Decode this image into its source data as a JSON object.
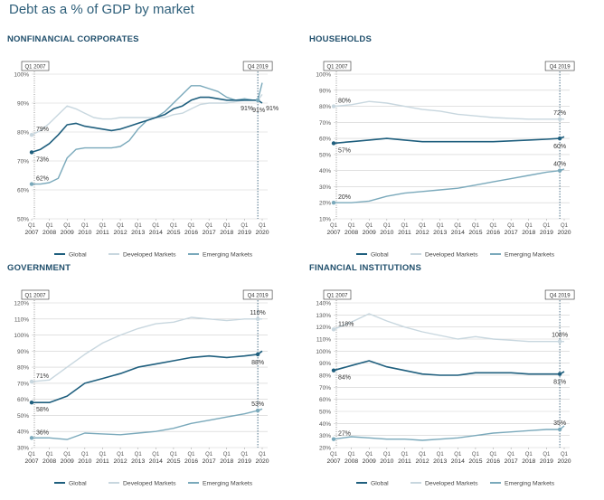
{
  "page_title": "Debt as a % of GDP by market",
  "colors": {
    "global": "#1f5f7e",
    "developed": "#c8d7df",
    "emerging": "#7aa9bb",
    "marker_label": "#1f4e6b"
  },
  "marker_start": "Q1 2007",
  "marker_end": "Q4 2019",
  "legend": {
    "global": "Global",
    "developed": "Developed Markets",
    "emerging": "Emerging Markets"
  },
  "x_ticks": [
    {
      "top": "Q1",
      "bottom": "2007"
    },
    {
      "top": "Q1",
      "bottom": "2008"
    },
    {
      "top": "Q1",
      "bottom": "2009"
    },
    {
      "top": "Q1",
      "bottom": "2010"
    },
    {
      "top": "Q1",
      "bottom": "2011"
    },
    {
      "top": "Q1",
      "bottom": "2012"
    },
    {
      "top": "Q1",
      "bottom": "2013"
    },
    {
      "top": "Q1",
      "bottom": "2014"
    },
    {
      "top": "Q1",
      "bottom": "2015"
    },
    {
      "top": "Q1",
      "bottom": "2016"
    },
    {
      "top": "Q1",
      "bottom": "2017"
    },
    {
      "top": "Q1",
      "bottom": "2018"
    },
    {
      "top": "Q1",
      "bottom": "2019"
    },
    {
      "top": "Q1",
      "bottom": "2020"
    }
  ],
  "chart_data": [
    {
      "type": "line",
      "title": "NONFINANCIAL CORPORATES",
      "x": [
        2007,
        2007.5,
        2008,
        2008.5,
        2009,
        2009.5,
        2010,
        2010.5,
        2011,
        2011.5,
        2012,
        2012.5,
        2013,
        2013.5,
        2014,
        2014.5,
        2015,
        2015.5,
        2016,
        2016.5,
        2017,
        2017.5,
        2018,
        2018.5,
        2019,
        2019.5,
        2019.75,
        2020
      ],
      "ylim": [
        50,
        100
      ],
      "yticks": [
        "50%",
        "60%",
        "70%",
        "80%",
        "90%",
        "100%"
      ],
      "series": [
        {
          "name": "Global",
          "values": [
            73,
            74,
            76,
            79,
            82.5,
            83,
            82,
            81.5,
            81,
            80.5,
            81,
            82,
            83,
            84,
            85,
            86,
            88,
            89,
            91,
            92,
            92,
            91.5,
            91,
            91,
            91,
            91,
            91,
            90
          ]
        },
        {
          "name": "Developed Markets",
          "values": [
            79,
            80.5,
            83,
            86,
            89,
            88,
            86.5,
            85,
            84.5,
            84.5,
            85,
            85,
            85,
            85,
            85,
            85,
            86,
            86.5,
            88,
            89.5,
            90,
            90,
            90,
            90.5,
            91,
            91,
            91,
            93
          ]
        },
        {
          "name": "Emerging Markets",
          "values": [
            62,
            62,
            62.5,
            64,
            71,
            74,
            74.5,
            74.5,
            74.5,
            74.5,
            75,
            77,
            81,
            84,
            85,
            87,
            90,
            93,
            96,
            96,
            95,
            94,
            92,
            91,
            91.5,
            91,
            91,
            97
          ]
        }
      ],
      "start_labels": [
        "79%",
        "73%",
        "62%"
      ],
      "end_labels": [
        "91%",
        "91%",
        "91%"
      ]
    },
    {
      "type": "line",
      "title": "HOUSEHOLDS",
      "x": [
        2007,
        2008,
        2009,
        2010,
        2011,
        2012,
        2013,
        2014,
        2015,
        2016,
        2017,
        2018,
        2019,
        2019.75,
        2020
      ],
      "ylim": [
        10,
        100
      ],
      "yticks": [
        "10%",
        "20%",
        "30%",
        "40%",
        "50%",
        "60%",
        "70%",
        "80%",
        "90%",
        "100%"
      ],
      "series": [
        {
          "name": "Global",
          "values": [
            57,
            58,
            59,
            60,
            59,
            58,
            58,
            58,
            58,
            58,
            58.5,
            59,
            59.5,
            60,
            61
          ]
        },
        {
          "name": "Developed Markets",
          "values": [
            80,
            81,
            83,
            82,
            80,
            78,
            77,
            75,
            74,
            73,
            72.5,
            72,
            72,
            72,
            72
          ]
        },
        {
          "name": "Emerging Markets",
          "values": [
            20,
            20,
            21,
            24,
            26,
            27,
            28,
            29,
            31,
            33,
            35,
            37,
            39,
            40,
            41
          ]
        }
      ],
      "start_labels": [
        "80%",
        "57%",
        "20%"
      ],
      "end_labels": [
        "72%",
        "60%",
        "40%"
      ]
    },
    {
      "type": "line",
      "title": "GOVERNMENT",
      "x": [
        2007,
        2008,
        2009,
        2010,
        2011,
        2012,
        2013,
        2014,
        2015,
        2016,
        2017,
        2018,
        2019,
        2019.75,
        2020
      ],
      "ylim": [
        30,
        120
      ],
      "yticks": [
        "30%",
        "40%",
        "50%",
        "60%",
        "70%",
        "80%",
        "90%",
        "100%",
        "110%",
        "120%"
      ],
      "series": [
        {
          "name": "Global",
          "values": [
            58,
            58,
            62,
            70,
            73,
            76,
            80,
            82,
            84,
            86,
            87,
            86,
            87,
            88,
            90
          ]
        },
        {
          "name": "Developed Markets",
          "values": [
            71,
            72,
            80,
            88,
            95,
            100,
            104,
            107,
            108,
            111,
            110,
            109,
            110,
            110,
            110
          ]
        },
        {
          "name": "Emerging Markets",
          "values": [
            36,
            36,
            35,
            39,
            38.5,
            38,
            39,
            40,
            42,
            45,
            47,
            49,
            51,
            53,
            54
          ]
        }
      ],
      "start_labels": [
        "71%",
        "58%",
        "36%"
      ],
      "end_labels": [
        "110%",
        "88%",
        "53%"
      ]
    },
    {
      "type": "line",
      "title": "FINANCIAL INSTITUTIONS",
      "x": [
        2007,
        2008,
        2009,
        2010,
        2011,
        2012,
        2013,
        2014,
        2015,
        2016,
        2017,
        2018,
        2019,
        2019.75,
        2020
      ],
      "ylim": [
        20,
        140
      ],
      "yticks": [
        "20%",
        "30%",
        "40%",
        "50%",
        "60%",
        "70%",
        "80%",
        "90%",
        "100%",
        "110%",
        "120%",
        "130%",
        "140%"
      ],
      "series": [
        {
          "name": "Global",
          "values": [
            84,
            88,
            92,
            87,
            84,
            81,
            80,
            80,
            82,
            82,
            82,
            81,
            81,
            81,
            83
          ]
        },
        {
          "name": "Developed Markets",
          "values": [
            118,
            124,
            131,
            125,
            120,
            116,
            113,
            110,
            112,
            110,
            109,
            108,
            108,
            108,
            108
          ]
        },
        {
          "name": "Emerging Markets",
          "values": [
            27,
            29,
            28,
            27,
            27,
            26,
            27,
            28,
            30,
            32,
            33,
            34,
            35,
            35,
            38
          ]
        }
      ],
      "start_labels": [
        "118%",
        "84%",
        "27%"
      ],
      "end_labels": [
        "108%",
        "81%",
        "35%"
      ]
    }
  ]
}
